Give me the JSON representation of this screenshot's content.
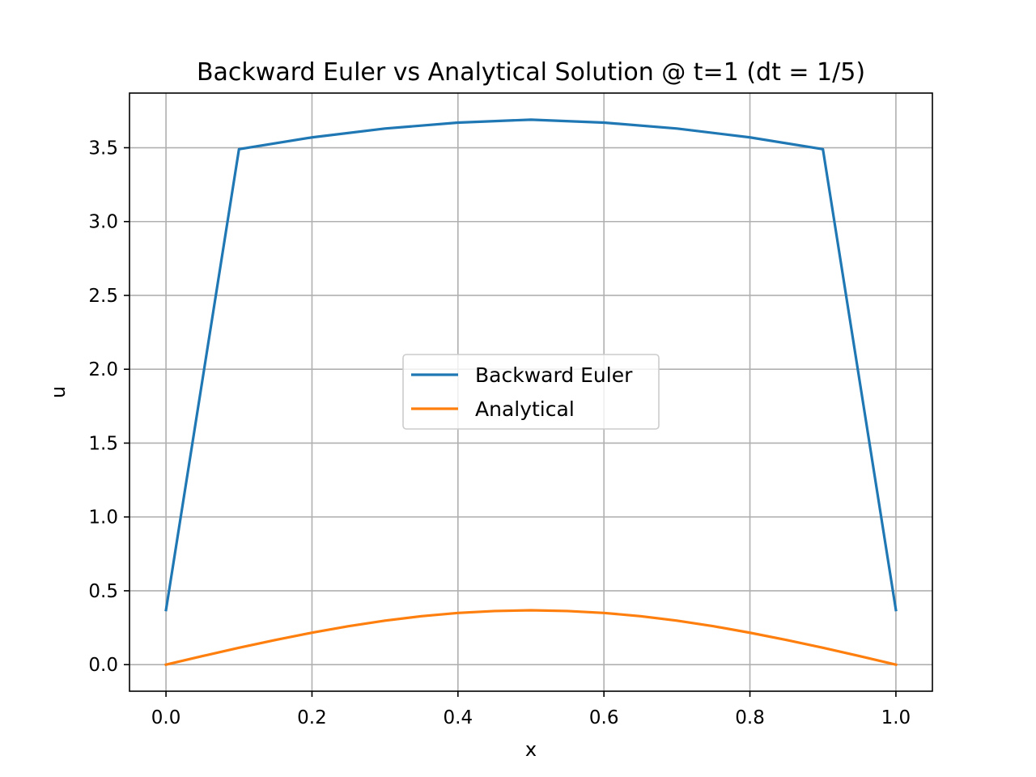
{
  "chart_data": {
    "type": "line",
    "title": "Backward Euler vs Analytical Solution @ t=1 (dt = 1/5)",
    "xlabel": "x",
    "ylabel": "u",
    "xlim": [
      -0.05,
      1.05
    ],
    "ylim": [
      -0.18,
      3.87
    ],
    "x_ticks": [
      0.0,
      0.2,
      0.4,
      0.6,
      0.8,
      1.0
    ],
    "x_tick_labels": [
      "0.0",
      "0.2",
      "0.4",
      "0.6",
      "0.8",
      "1.0"
    ],
    "y_ticks": [
      0.0,
      0.5,
      1.0,
      1.5,
      2.0,
      2.5,
      3.0,
      3.5
    ],
    "y_tick_labels": [
      "0.0",
      "0.5",
      "1.0",
      "1.5",
      "2.0",
      "2.5",
      "3.0",
      "3.5"
    ],
    "grid": true,
    "legend": {
      "placement": "center"
    },
    "series": [
      {
        "name": "Backward Euler",
        "color": "#1f77b4",
        "x": [
          0.0,
          0.1,
          0.2,
          0.3,
          0.4,
          0.5,
          0.6,
          0.7,
          0.8,
          0.9,
          1.0
        ],
        "y": [
          0.37,
          3.49,
          3.57,
          3.63,
          3.67,
          3.69,
          3.67,
          3.63,
          3.57,
          3.49,
          0.37
        ]
      },
      {
        "name": "Analytical",
        "color": "#ff7f0e",
        "x": [
          0.0,
          0.05,
          0.1,
          0.15,
          0.2,
          0.25,
          0.3,
          0.35,
          0.4,
          0.45,
          0.5,
          0.55,
          0.6,
          0.65,
          0.7,
          0.75,
          0.8,
          0.85,
          0.9,
          0.95,
          1.0
        ],
        "y": [
          0.0,
          0.058,
          0.114,
          0.167,
          0.216,
          0.26,
          0.298,
          0.328,
          0.35,
          0.363,
          0.368,
          0.363,
          0.35,
          0.328,
          0.298,
          0.26,
          0.216,
          0.167,
          0.114,
          0.058,
          0.0
        ]
      }
    ]
  }
}
